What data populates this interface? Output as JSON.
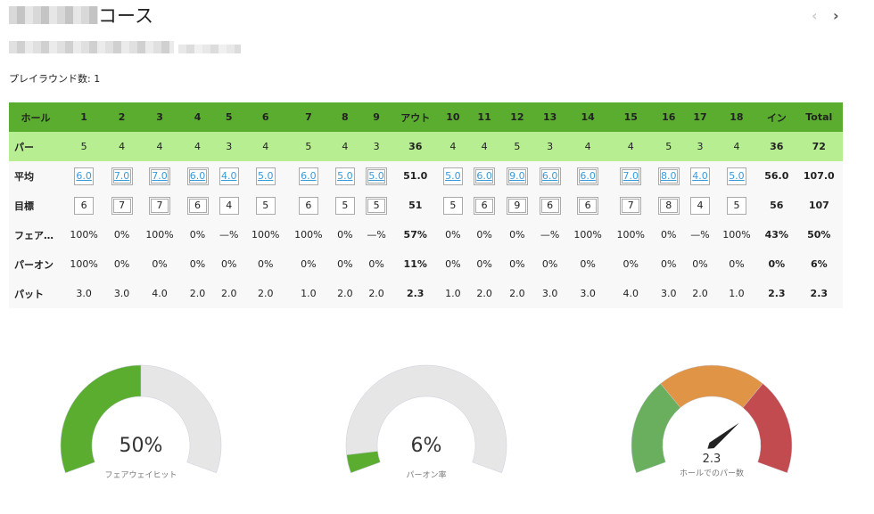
{
  "header": {
    "title_suffix": "コース",
    "rounds_label": "プレイラウンド数: 1",
    "prev_icon": "‹",
    "next_icon": "›"
  },
  "table": {
    "headers": [
      "ホール",
      "1",
      "2",
      "3",
      "4",
      "5",
      "6",
      "7",
      "8",
      "9",
      "アウト",
      "10",
      "11",
      "12",
      "13",
      "14",
      "15",
      "16",
      "17",
      "18",
      "イン",
      "Total"
    ],
    "rows": {
      "par": {
        "label": "パー",
        "values": [
          "5",
          "4",
          "4",
          "4",
          "3",
          "4",
          "5",
          "4",
          "3",
          "36",
          "4",
          "4",
          "5",
          "3",
          "4",
          "4",
          "5",
          "3",
          "4",
          "36",
          "72"
        ]
      },
      "avg": {
        "label": "平均",
        "values": [
          "6.0",
          "7.0",
          "7.0",
          "6.0",
          "4.0",
          "5.0",
          "6.0",
          "5.0",
          "5.0",
          "51.0",
          "5.0",
          "6.0",
          "9.0",
          "6.0",
          "6.0",
          "7.0",
          "8.0",
          "4.0",
          "5.0",
          "56.0",
          "107.0"
        ]
      },
      "target": {
        "label": "目標",
        "values": [
          "6",
          "7",
          "7",
          "6",
          "4",
          "5",
          "6",
          "5",
          "5",
          "51",
          "5",
          "6",
          "9",
          "6",
          "6",
          "7",
          "8",
          "4",
          "5",
          "56",
          "107"
        ]
      },
      "fairway": {
        "label": "フェア…",
        "values": [
          "100%",
          "0%",
          "100%",
          "0%",
          "—%",
          "100%",
          "100%",
          "0%",
          "—%",
          "57%",
          "0%",
          "0%",
          "0%",
          "—%",
          "100%",
          "100%",
          "0%",
          "—%",
          "100%",
          "43%",
          "50%"
        ]
      },
      "gir": {
        "label": "パーオン",
        "values": [
          "100%",
          "0%",
          "0%",
          "0%",
          "0%",
          "0%",
          "0%",
          "0%",
          "0%",
          "11%",
          "0%",
          "0%",
          "0%",
          "0%",
          "0%",
          "0%",
          "0%",
          "0%",
          "0%",
          "0%",
          "6%"
        ]
      },
      "putts": {
        "label": "パット",
        "values": [
          "3.0",
          "3.0",
          "4.0",
          "2.0",
          "2.0",
          "2.0",
          "1.0",
          "2.0",
          "2.0",
          "2.3",
          "1.0",
          "2.0",
          "2.0",
          "3.0",
          "3.0",
          "4.0",
          "3.0",
          "2.0",
          "1.0",
          "2.3",
          "2.3"
        ]
      }
    }
  },
  "gauges": [
    {
      "value": "50%",
      "label": "フェアウェイヒット",
      "fraction": 0.5,
      "color": "#5aad2e"
    },
    {
      "value": "6%",
      "label": "パーオン率",
      "fraction": 0.06,
      "color": "#5aad2e"
    },
    {
      "value": "2.3",
      "label": "ホールでのパー数",
      "needle_fraction": 0.73,
      "bands": [
        {
          "to": 0.32,
          "color": "#6aaf5e"
        },
        {
          "to": 0.68,
          "color": "#e09445"
        },
        {
          "to": 1,
          "color": "#c24b4f"
        }
      ]
    }
  ]
}
